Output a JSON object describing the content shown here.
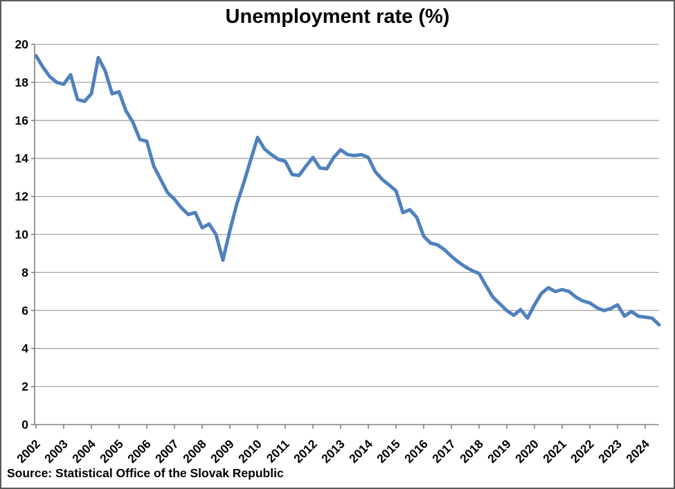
{
  "title": "Unemployment rate (%)",
  "source_note": "Source: Statistical Office of the Slovak Republic",
  "colors": {
    "line": "#4F81BD",
    "grid": "#A6A6A6",
    "axis": "#808080",
    "text": "#000000",
    "frame": "#5A5A5A",
    "background": "#FFFFFF"
  },
  "chart_data": {
    "type": "line",
    "title": "Unemployment rate (%)",
    "source": "Source: Statistical Office of the Slovak Republic",
    "grid": "horizontal",
    "legend": "none",
    "x_axis": {
      "frequency": "quarterly",
      "tick_labels": [
        "2002",
        "2003",
        "2004",
        "2005",
        "2006",
        "2007",
        "2008",
        "2009",
        "2010",
        "2011",
        "2012",
        "2013",
        "2014",
        "2015",
        "2016",
        "2017",
        "2018",
        "2019",
        "2020",
        "2021",
        "2022",
        "2023",
        "2024"
      ]
    },
    "y_axis": {
      "range": [
        0,
        20
      ],
      "ticks": [
        0,
        2,
        4,
        6,
        8,
        10,
        12,
        14,
        16,
        18,
        20
      ]
    },
    "series": [
      {
        "name": "Unemployment rate (%)",
        "color": "#4F81BD",
        "start": "2002-Q1",
        "end": "2024-Q3",
        "values": [
          19.4,
          18.8,
          18.3,
          18.0,
          17.9,
          18.4,
          17.1,
          17.0,
          17.4,
          19.3,
          18.6,
          17.4,
          17.5,
          16.5,
          15.9,
          15.0,
          14.9,
          13.6,
          12.9,
          12.2,
          11.85,
          11.4,
          11.05,
          11.15,
          10.35,
          10.55,
          10.0,
          8.65,
          10.2,
          11.6,
          12.7,
          13.9,
          15.1,
          14.5,
          14.2,
          13.95,
          13.85,
          13.15,
          13.1,
          13.6,
          14.05,
          13.5,
          13.45,
          14.05,
          14.45,
          14.2,
          14.15,
          14.2,
          14.05,
          13.3,
          12.9,
          12.6,
          12.3,
          11.15,
          11.3,
          10.9,
          9.9,
          9.55,
          9.45,
          9.2,
          8.85,
          8.55,
          8.3,
          8.1,
          7.95,
          7.3,
          6.7,
          6.35,
          6.0,
          5.75,
          6.05,
          5.6,
          6.3,
          6.9,
          7.2,
          7.0,
          7.1,
          7.0,
          6.7,
          6.5,
          6.4,
          6.15,
          6.0,
          6.1,
          6.3,
          5.7,
          5.95,
          5.7,
          5.65,
          5.6,
          5.25
        ]
      }
    ]
  }
}
